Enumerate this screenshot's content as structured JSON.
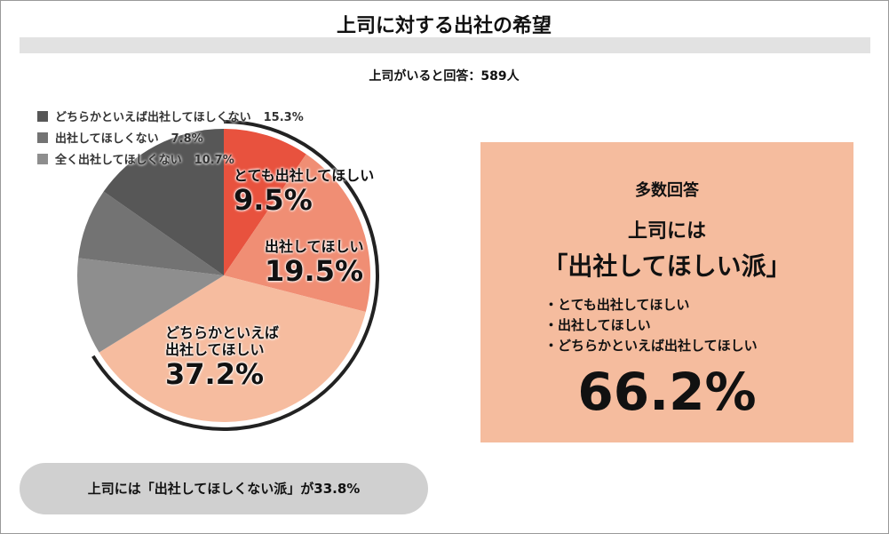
{
  "chart_data": {
    "type": "pie",
    "title": "上司に対する出社の希望",
    "subtitle": "上司がいると回答：589人",
    "categories": [
      "とても出社してほしい",
      "出社してほしい",
      "どちらかといえば出社してほしい",
      "全く出社してほしくない",
      "出社してほしくない",
      "どちらかといえば出社してほしくない"
    ],
    "values": [
      9.5,
      19.5,
      37.2,
      10.7,
      7.8,
      15.3
    ],
    "value_labels": [
      "9.5%",
      "19.5%",
      "37.2%",
      "10.7%",
      "7.8%",
      "15.3%"
    ],
    "colors": [
      "#e8523e",
      "#f08e74",
      "#f6bc9f",
      "#8e8e8e",
      "#737373",
      "#575757"
    ],
    "legend": [
      5,
      4,
      3
    ],
    "summary": {
      "heading": "多数回答",
      "line1": "上司には",
      "line2": "「出社してほしい派」",
      "items": [
        0,
        1,
        2
      ],
      "total": "66.2%"
    },
    "footer": "上司には「出社してほしくない派」が33.8%"
  }
}
